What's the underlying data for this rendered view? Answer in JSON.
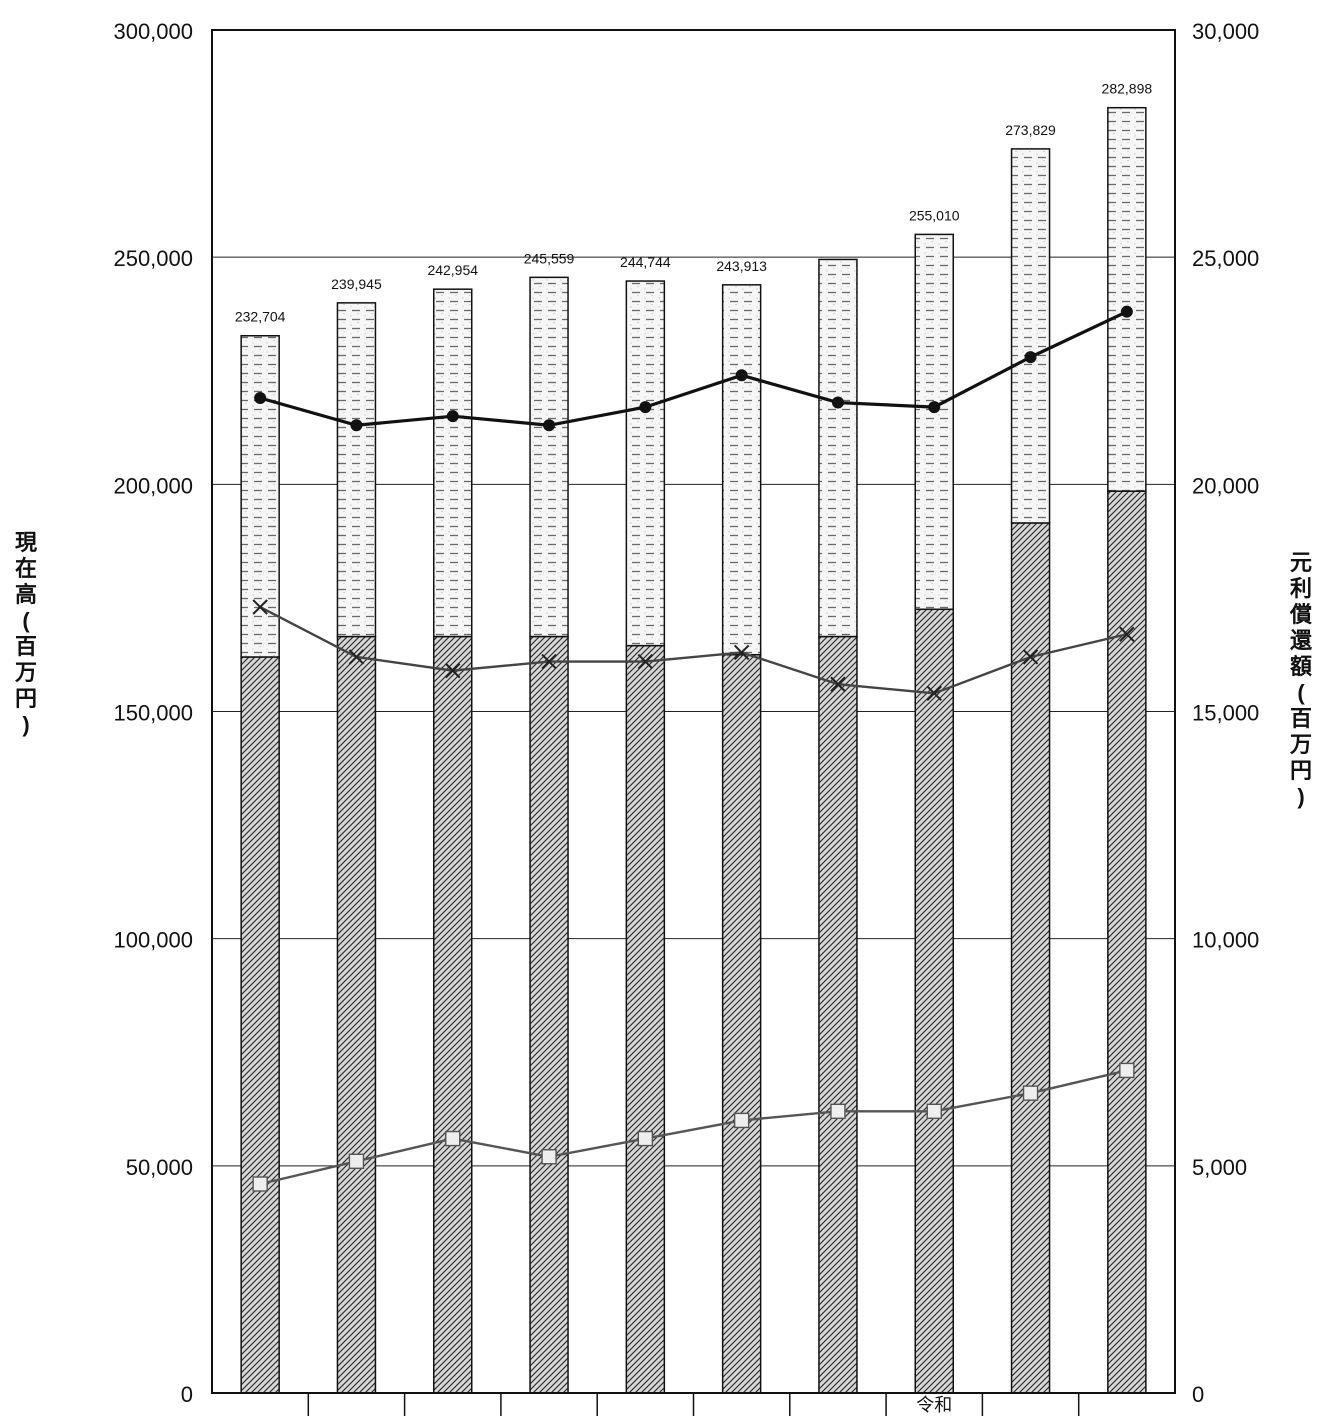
{
  "chart_data": {
    "type": "bar",
    "categories": [
      "",
      "",
      "",
      "",
      "",
      "",
      "",
      "令和",
      "",
      ""
    ],
    "bar_labels": [
      "232,704",
      "239,945",
      "242,954",
      "245,559",
      "244,744",
      "243,913",
      "",
      "255,010",
      "273,829",
      "282,898"
    ],
    "series": [
      {
        "axis": "left",
        "kind": "bar-stack-bottom",
        "values": [
          162000,
          166500,
          166500,
          166500,
          164500,
          162500,
          166500,
          172500,
          191500,
          198500
        ]
      },
      {
        "axis": "left",
        "kind": "bar-stack-top",
        "values": [
          70704,
          73445,
          76454,
          79059,
          80244,
          81413,
          83000,
          82510,
          82329,
          84398
        ]
      },
      {
        "axis": "right",
        "kind": "line-dot",
        "values": [
          21900,
          21300,
          21500,
          21300,
          21700,
          22400,
          21800,
          21700,
          22800,
          23800
        ]
      },
      {
        "axis": "right",
        "kind": "line-cross",
        "values": [
          17300,
          16200,
          15900,
          16100,
          16100,
          16300,
          15600,
          15400,
          16200,
          16700
        ]
      },
      {
        "axis": "right",
        "kind": "line-square",
        "values": [
          4600,
          5100,
          5600,
          5200,
          5600,
          6000,
          6200,
          6200,
          6600,
          7100
        ]
      }
    ],
    "left_axis": {
      "label": "現在高(百万円)",
      "ticks": [
        "0",
        "50,000",
        "100,000",
        "150,000",
        "200,000",
        "250,000",
        "300,000"
      ],
      "ylim": [
        0,
        300000
      ]
    },
    "right_axis": {
      "label": "元利償還額(百万円)",
      "ticks": [
        "0",
        "5,000",
        "10,000",
        "15,000",
        "20,000",
        "25,000",
        "30,000"
      ],
      "ylim": [
        0,
        30000
      ]
    },
    "grid": true,
    "legend": "none"
  }
}
